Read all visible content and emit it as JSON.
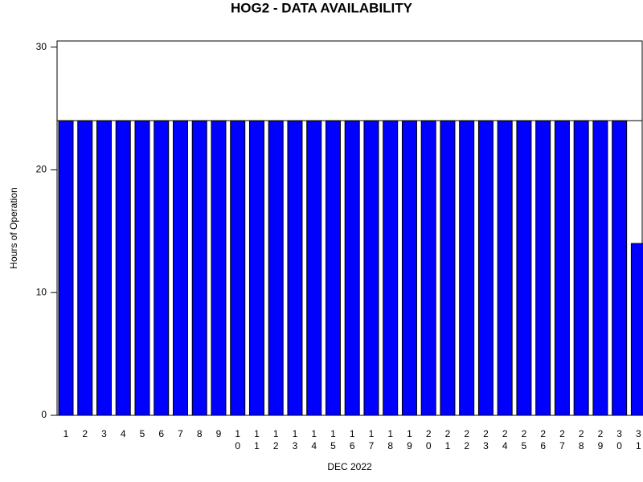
{
  "chart_data": {
    "type": "bar",
    "title": "HOG2 - DATA AVAILABILITY",
    "x_label": "DEC 2022",
    "y_label": "Hours of Operation",
    "categories": [
      "1",
      "2",
      "3",
      "4",
      "5",
      "6",
      "7",
      "8",
      "9",
      "10",
      "11",
      "12",
      "13",
      "14",
      "15",
      "16",
      "17",
      "18",
      "19",
      "20",
      "21",
      "22",
      "23",
      "24",
      "25",
      "26",
      "27",
      "28",
      "29",
      "30",
      "31"
    ],
    "values": [
      24,
      24,
      24,
      24,
      24,
      24,
      24,
      24,
      24,
      24,
      24,
      24,
      24,
      24,
      24,
      24,
      24,
      24,
      24,
      24,
      24,
      24,
      24,
      24,
      24,
      24,
      24,
      24,
      24,
      24,
      14
    ],
    "color": "#0000ff",
    "reference_line": 24,
    "ylim": [
      0,
      30.5
    ],
    "yticks": [
      0,
      10,
      20,
      30
    ]
  }
}
